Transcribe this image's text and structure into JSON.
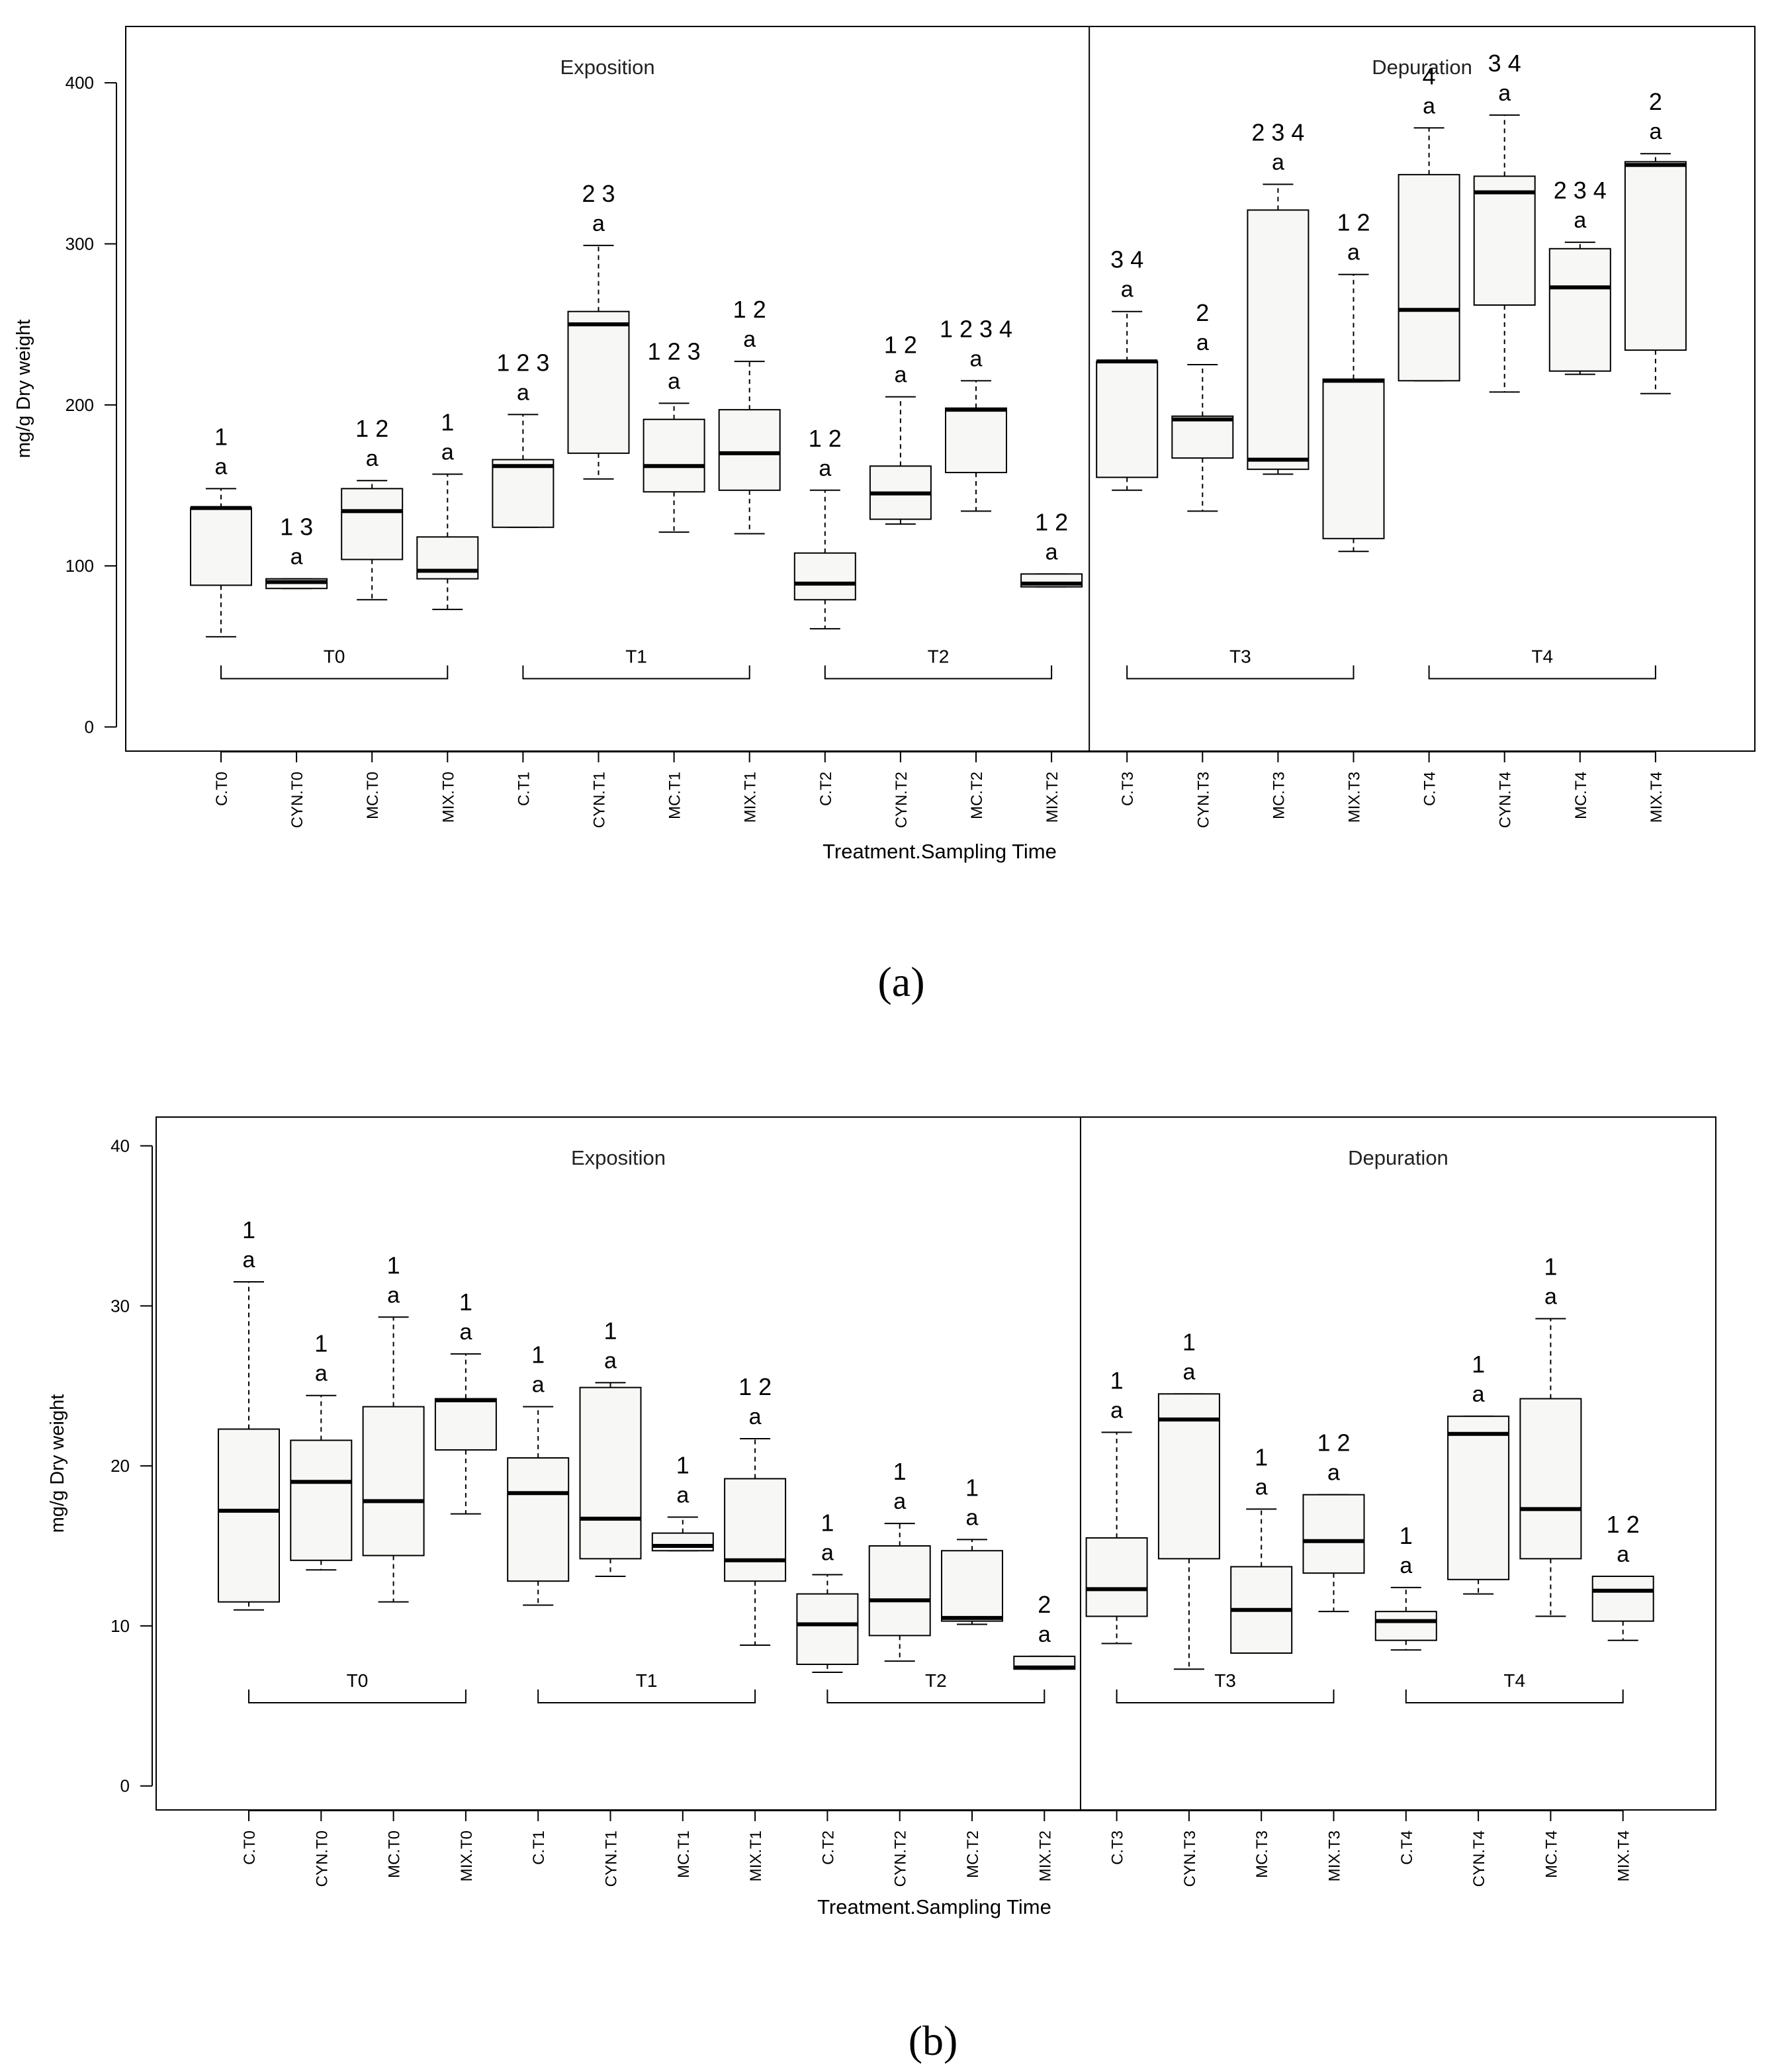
{
  "chart_data": [
    {
      "type": "box",
      "panel_label": "(a)",
      "xlabel": "Treatment.Sampling Time",
      "ylabel": "mg/g Dry weight",
      "ylim": [
        -15,
        435
      ],
      "yticks": [
        0,
        100,
        200,
        300,
        400
      ],
      "phases": [
        {
          "name": "Exposition",
          "from": 0,
          "to": 12
        },
        {
          "name": "Depuration",
          "from": 12,
          "to": 20
        }
      ],
      "groups": [
        {
          "label": "T0",
          "from": 0,
          "to": 3
        },
        {
          "label": "T1",
          "from": 4,
          "to": 7
        },
        {
          "label": "T2",
          "from": 8,
          "to": 11
        },
        {
          "label": "T3",
          "from": 12,
          "to": 15
        },
        {
          "label": "T4",
          "from": 16,
          "to": 19
        }
      ],
      "group_bracket_y": 30,
      "boxes": [
        {
          "label": "C.T0",
          "min": 56,
          "q1": 88,
          "median": 136,
          "q3": 136,
          "max": 148,
          "letters": [
            "1",
            "a"
          ]
        },
        {
          "label": "CYN.T0",
          "min": 86,
          "q1": 86,
          "median": 90,
          "q3": 92,
          "max": 92,
          "letters": [
            "1 3",
            "a"
          ]
        },
        {
          "label": "MC.T0",
          "min": 79,
          "q1": 104,
          "median": 134,
          "q3": 148,
          "max": 153,
          "letters": [
            "1 2",
            "a"
          ]
        },
        {
          "label": "MIX.T0",
          "min": 73,
          "q1": 92,
          "median": 97,
          "q3": 118,
          "max": 157,
          "letters": [
            "1",
            "a"
          ]
        },
        {
          "label": "C.T1",
          "min": 124,
          "q1": 124,
          "median": 162,
          "q3": 166,
          "max": 194,
          "letters": [
            "1 2 3",
            "a"
          ]
        },
        {
          "label": "CYN.T1",
          "min": 154,
          "q1": 170,
          "median": 250,
          "q3": 258,
          "max": 299,
          "letters": [
            "2 3",
            "a"
          ]
        },
        {
          "label": "MC.T1",
          "min": 121,
          "q1": 146,
          "median": 162,
          "q3": 191,
          "max": 201,
          "letters": [
            "1 2 3",
            "a"
          ]
        },
        {
          "label": "MIX.T1",
          "min": 120,
          "q1": 147,
          "median": 170,
          "q3": 197,
          "max": 227,
          "letters": [
            "1 2",
            "a"
          ]
        },
        {
          "label": "C.T2",
          "min": 61,
          "q1": 79,
          "median": 89,
          "q3": 108,
          "max": 147,
          "letters": [
            "1 2",
            "a"
          ]
        },
        {
          "label": "CYN.T2",
          "min": 126,
          "q1": 129,
          "median": 145,
          "q3": 162,
          "max": 205,
          "letters": [
            "1 2",
            "a"
          ]
        },
        {
          "label": "MC.T2",
          "min": 134,
          "q1": 158,
          "median": 197,
          "q3": 198,
          "max": 215,
          "letters": [
            "1 2 3 4",
            "a"
          ]
        },
        {
          "label": "MIX.T2",
          "min": 87,
          "q1": 87,
          "median": 89,
          "q3": 95,
          "max": 95,
          "letters": [
            "1 2",
            "a"
          ]
        },
        {
          "label": "C.T3",
          "min": 147,
          "q1": 155,
          "median": 227,
          "q3": 227,
          "max": 258,
          "letters": [
            "3 4",
            "a"
          ]
        },
        {
          "label": "CYN.T3",
          "min": 134,
          "q1": 167,
          "median": 191,
          "q3": 193,
          "max": 225,
          "letters": [
            "2",
            "a"
          ]
        },
        {
          "label": "MC.T3",
          "min": 157,
          "q1": 160,
          "median": 166,
          "q3": 321,
          "max": 337,
          "letters": [
            "2 3 4",
            "a"
          ]
        },
        {
          "label": "MIX.T3",
          "min": 109,
          "q1": 117,
          "median": 215,
          "q3": 216,
          "max": 281,
          "letters": [
            "1 2",
            "a"
          ]
        },
        {
          "label": "C.T4",
          "min": 215,
          "q1": 215,
          "median": 259,
          "q3": 343,
          "max": 372,
          "letters": [
            "4",
            "a"
          ]
        },
        {
          "label": "CYN.T4",
          "min": 208,
          "q1": 262,
          "median": 332,
          "q3": 342,
          "max": 380,
          "letters": [
            "3 4",
            "a"
          ]
        },
        {
          "label": "MC.T4",
          "min": 219,
          "q1": 221,
          "median": 273,
          "q3": 297,
          "max": 301,
          "letters": [
            "2 3 4",
            "a"
          ]
        },
        {
          "label": "MIX.T4",
          "min": 207,
          "q1": 234,
          "median": 349,
          "q3": 351,
          "max": 356,
          "letters": [
            "2",
            "a"
          ]
        }
      ]
    },
    {
      "type": "box",
      "panel_label": "(b)",
      "xlabel": "Treatment.Sampling Time",
      "ylabel": "mg/g Dry weight",
      "ylim": [
        -1.5,
        41.8
      ],
      "yticks": [
        0,
        10,
        20,
        30,
        40
      ],
      "phases": [
        {
          "name": "Exposition",
          "from": 0,
          "to": 12
        },
        {
          "name": "Depuration",
          "from": 12,
          "to": 20
        }
      ],
      "groups": [
        {
          "label": "T0",
          "from": 0,
          "to": 3
        },
        {
          "label": "T1",
          "from": 4,
          "to": 7
        },
        {
          "label": "T2",
          "from": 8,
          "to": 11
        },
        {
          "label": "T3",
          "from": 12,
          "to": 15
        },
        {
          "label": "T4",
          "from": 16,
          "to": 19
        }
      ],
      "group_bracket_y": 5.2,
      "boxes": [
        {
          "label": "C.T0",
          "min": 11.0,
          "q1": 11.5,
          "median": 17.2,
          "q3": 22.3,
          "max": 31.5,
          "letters": [
            "1",
            "a"
          ]
        },
        {
          "label": "CYN.T0",
          "min": 13.5,
          "q1": 14.1,
          "median": 19.0,
          "q3": 21.6,
          "max": 24.4,
          "letters": [
            "1",
            "a"
          ]
        },
        {
          "label": "MC.T0",
          "min": 11.5,
          "q1": 14.4,
          "median": 17.8,
          "q3": 23.7,
          "max": 29.3,
          "letters": [
            "1",
            "a"
          ]
        },
        {
          "label": "MIX.T0",
          "min": 17.0,
          "q1": 21.0,
          "median": 24.1,
          "q3": 24.2,
          "max": 27.0,
          "letters": [
            "1",
            "a"
          ]
        },
        {
          "label": "C.T1",
          "min": 11.3,
          "q1": 12.8,
          "median": 18.3,
          "q3": 20.5,
          "max": 23.7,
          "letters": [
            "1",
            "a"
          ]
        },
        {
          "label": "CYN.T1",
          "min": 13.1,
          "q1": 14.2,
          "median": 16.7,
          "q3": 24.9,
          "max": 25.2,
          "letters": [
            "1",
            "a"
          ]
        },
        {
          "label": "MC.T1",
          "min": 14.7,
          "q1": 14.7,
          "median": 15.0,
          "q3": 15.8,
          "max": 16.8,
          "letters": [
            "1",
            "a"
          ]
        },
        {
          "label": "MIX.T1",
          "min": 8.8,
          "q1": 12.8,
          "median": 14.1,
          "q3": 19.2,
          "max": 21.7,
          "letters": [
            "1 2",
            "a"
          ]
        },
        {
          "label": "C.T2",
          "min": 7.1,
          "q1": 7.6,
          "median": 10.1,
          "q3": 12.0,
          "max": 13.2,
          "letters": [
            "1",
            "a"
          ]
        },
        {
          "label": "CYN.T2",
          "min": 7.8,
          "q1": 9.4,
          "median": 11.6,
          "q3": 15.0,
          "max": 16.4,
          "letters": [
            "1",
            "a"
          ]
        },
        {
          "label": "MC.T2",
          "min": 10.1,
          "q1": 10.3,
          "median": 10.5,
          "q3": 14.7,
          "max": 15.4,
          "letters": [
            "1",
            "a"
          ]
        },
        {
          "label": "MIX.T2",
          "min": 7.3,
          "q1": 7.3,
          "median": 7.4,
          "q3": 8.1,
          "max": 8.1,
          "letters": [
            "2",
            "a"
          ]
        },
        {
          "label": "C.T3",
          "min": 8.9,
          "q1": 10.6,
          "median": 12.3,
          "q3": 15.5,
          "max": 22.1,
          "letters": [
            "1",
            "a"
          ]
        },
        {
          "label": "CYN.T3",
          "min": 7.3,
          "q1": 14.2,
          "median": 22.9,
          "q3": 24.5,
          "max": 24.5,
          "letters": [
            "1",
            "a"
          ]
        },
        {
          "label": "MC.T3",
          "min": 8.3,
          "q1": 8.3,
          "median": 11.0,
          "q3": 13.7,
          "max": 17.3,
          "letters": [
            "1",
            "a"
          ]
        },
        {
          "label": "MIX.T3",
          "min": 10.9,
          "q1": 13.3,
          "median": 15.3,
          "q3": 18.2,
          "max": 18.2,
          "letters": [
            "1 2",
            "a"
          ]
        },
        {
          "label": "C.T4",
          "min": 8.5,
          "q1": 9.1,
          "median": 10.3,
          "q3": 10.9,
          "max": 12.4,
          "letters": [
            "1",
            "a"
          ]
        },
        {
          "label": "CYN.T4",
          "min": 12.0,
          "q1": 12.9,
          "median": 22.0,
          "q3": 23.1,
          "max": 23.1,
          "letters": [
            "1",
            "a"
          ]
        },
        {
          "label": "MC.T4",
          "min": 10.6,
          "q1": 14.2,
          "median": 17.3,
          "q3": 24.2,
          "max": 29.2,
          "letters": [
            "1",
            "a"
          ]
        },
        {
          "label": "MIX.T4",
          "min": 9.1,
          "q1": 10.3,
          "median": 12.2,
          "q3": 13.1,
          "max": 13.1,
          "letters": [
            "1 2",
            "a"
          ]
        }
      ]
    }
  ]
}
